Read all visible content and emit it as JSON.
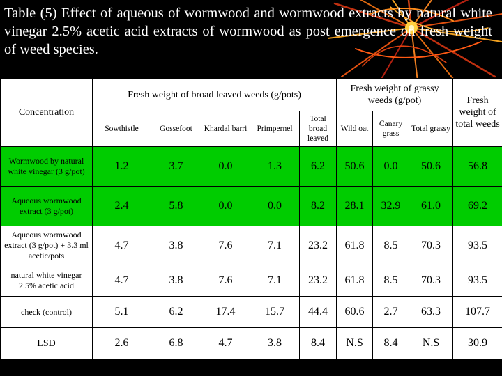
{
  "title": "Table (5) Effect of aqueous of wormwood  and wormwood  extracts by natural white vinegar 2.5% acetic acid extracts of wormwood as post emergence on fresh weight of weed species.",
  "colors": {
    "background": "#000000",
    "highlight": "#00cc00",
    "title_text": "#ffffff",
    "table_bg": "#ffffff"
  },
  "header": {
    "concentration": "Concentration",
    "broad": "Fresh weight of broad leaved weeds (g/pots)",
    "grassy": "Fresh weight of grassy weeds (g/pot)",
    "total": "Fresh weight of total weeds",
    "cols": [
      "Sowthistle",
      "Gossefoot",
      "Khardal barri",
      "Primpernel",
      "Total broad leaved",
      "Wild oat",
      "Canary grass",
      "Total grassy"
    ]
  },
  "rows": [
    {
      "label": "Wormwood by natural white vinegar (3 g/pot)",
      "values": [
        "1.2",
        "3.7",
        "0.0",
        "1.3",
        "6.2",
        "50.6",
        "0.0",
        "50.6",
        "56.8"
      ],
      "highlight": true
    },
    {
      "label": "Aqueous wormwood extract (3 g/pot)",
      "values": [
        "2.4",
        "5.8",
        "0.0",
        "0.0",
        "8.2",
        "28.1",
        "32.9",
        "61.0",
        "69.2"
      ],
      "highlight": true
    },
    {
      "label": "Aqueous wormwood extract (3 g/pot) + 3.3 ml acetic/pots",
      "values": [
        "4.7",
        "3.8",
        "7.6",
        "7.1",
        "23.2",
        "61.8",
        "8.5",
        "70.3",
        "93.5"
      ],
      "highlight": false
    },
    {
      "label": "natural white vinegar 2.5% acetic acid",
      "values": [
        "4.7",
        "3.8",
        "7.6",
        "7.1",
        "23.2",
        "61.8",
        "8.5",
        "70.3",
        "93.5"
      ],
      "highlight": false
    },
    {
      "label": "check (control)",
      "values": [
        "5.1",
        "6.2",
        "17.4",
        "15.7",
        "44.4",
        "60.6",
        "2.7",
        "63.3",
        "107.7"
      ],
      "highlight": false
    },
    {
      "label": "LSD",
      "values": [
        "2.6",
        "6.8",
        "4.7",
        "3.8",
        "8.4",
        "N.S",
        "8.4",
        "N.S",
        "30.9"
      ],
      "highlight": false
    }
  ]
}
